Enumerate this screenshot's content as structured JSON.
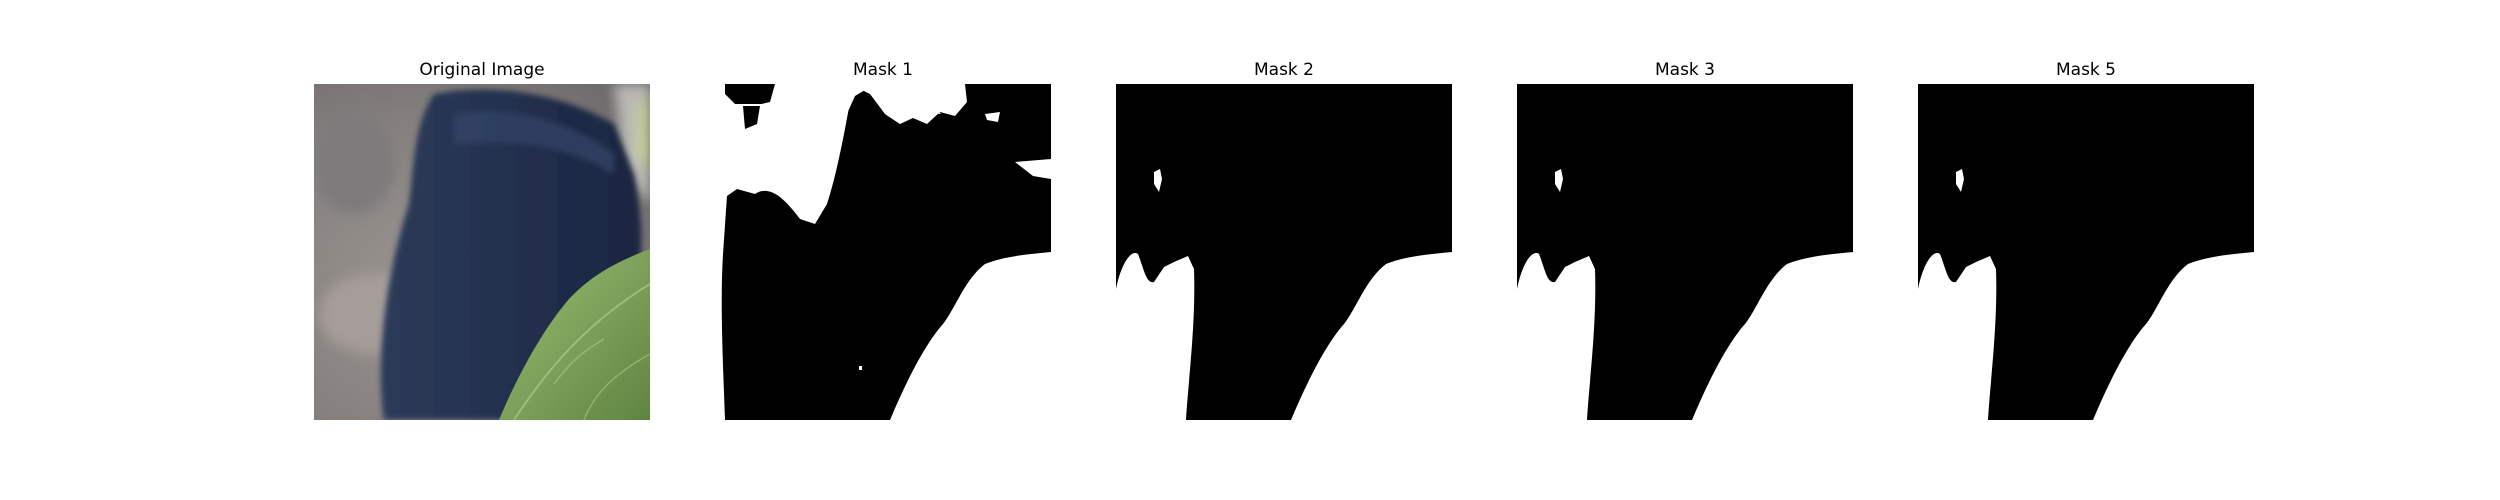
{
  "panels": [
    {
      "title": "Original Image"
    },
    {
      "title": "Mask 1"
    },
    {
      "title": "Mask 2"
    },
    {
      "title": "Mask 3"
    },
    {
      "title": "Mask 5"
    }
  ],
  "colors": {
    "background": "#ffffff",
    "mask_on": "#ffffff",
    "mask_off": "#000000",
    "photo_background": "#8e8987",
    "photo_sleeve": "#243352",
    "photo_leaf": "#7fa35c"
  }
}
